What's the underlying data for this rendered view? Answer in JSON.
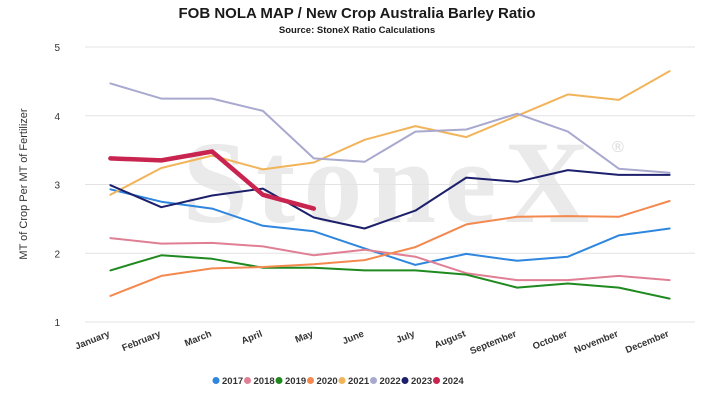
{
  "chart_data": {
    "type": "line",
    "title": "FOB NOLA MAP / New Crop Australia Barley Ratio",
    "subtitle": "Source: StoneX Ratio Calculations",
    "ylabel": "MT of Crop Per MT of Fertilizer",
    "xlabel": "",
    "ylim": [
      1,
      5
    ],
    "yticks": [
      "1",
      "2",
      "3",
      "4",
      "5"
    ],
    "grid": true,
    "legend_position": "bottom",
    "watermark": "StoneX",
    "watermark_mark": "®",
    "categories": [
      "January",
      "February",
      "March",
      "April",
      "May",
      "June",
      "July",
      "August",
      "September",
      "October",
      "November",
      "December"
    ],
    "series": [
      {
        "name": "2017",
        "color": "#2e86de",
        "width": 2,
        "values": [
          2.93,
          2.75,
          2.65,
          2.4,
          2.32,
          2.07,
          1.83,
          1.99,
          1.89,
          1.95,
          2.26,
          2.36
        ]
      },
      {
        "name": "2018",
        "color": "#e07f94",
        "width": 2,
        "values": [
          2.22,
          2.14,
          2.15,
          2.1,
          1.97,
          2.05,
          1.95,
          1.71,
          1.61,
          1.61,
          1.67,
          1.61
        ]
      },
      {
        "name": "2019",
        "color": "#1f8a1f",
        "width": 2,
        "values": [
          1.75,
          1.97,
          1.92,
          1.79,
          1.79,
          1.75,
          1.75,
          1.69,
          1.5,
          1.56,
          1.5,
          1.34
        ]
      },
      {
        "name": "2020",
        "color": "#f4894f",
        "width": 2,
        "values": [
          1.38,
          1.67,
          1.78,
          1.8,
          1.84,
          1.9,
          2.09,
          2.42,
          2.53,
          2.54,
          2.53,
          2.76
        ]
      },
      {
        "name": "2021",
        "color": "#f2b45a",
        "width": 2,
        "values": [
          2.85,
          3.24,
          3.42,
          3.22,
          3.32,
          3.65,
          3.85,
          3.69,
          4.0,
          4.31,
          4.23,
          4.65
        ]
      },
      {
        "name": "2022",
        "color": "#a9a9cf",
        "width": 2,
        "values": [
          4.47,
          4.25,
          4.25,
          4.07,
          3.38,
          3.33,
          3.77,
          3.8,
          4.03,
          3.77,
          3.23,
          3.17
        ]
      },
      {
        "name": "2023",
        "color": "#1c1f6b",
        "width": 2,
        "values": [
          2.99,
          2.67,
          2.84,
          2.94,
          2.52,
          2.36,
          2.62,
          3.1,
          3.04,
          3.21,
          3.14,
          3.14
        ]
      },
      {
        "name": "2024",
        "color": "#c8244f",
        "width": 4.5,
        "values": [
          3.38,
          3.35,
          3.48,
          2.85,
          2.65,
          null,
          null,
          null,
          null,
          null,
          null,
          null
        ]
      }
    ]
  }
}
